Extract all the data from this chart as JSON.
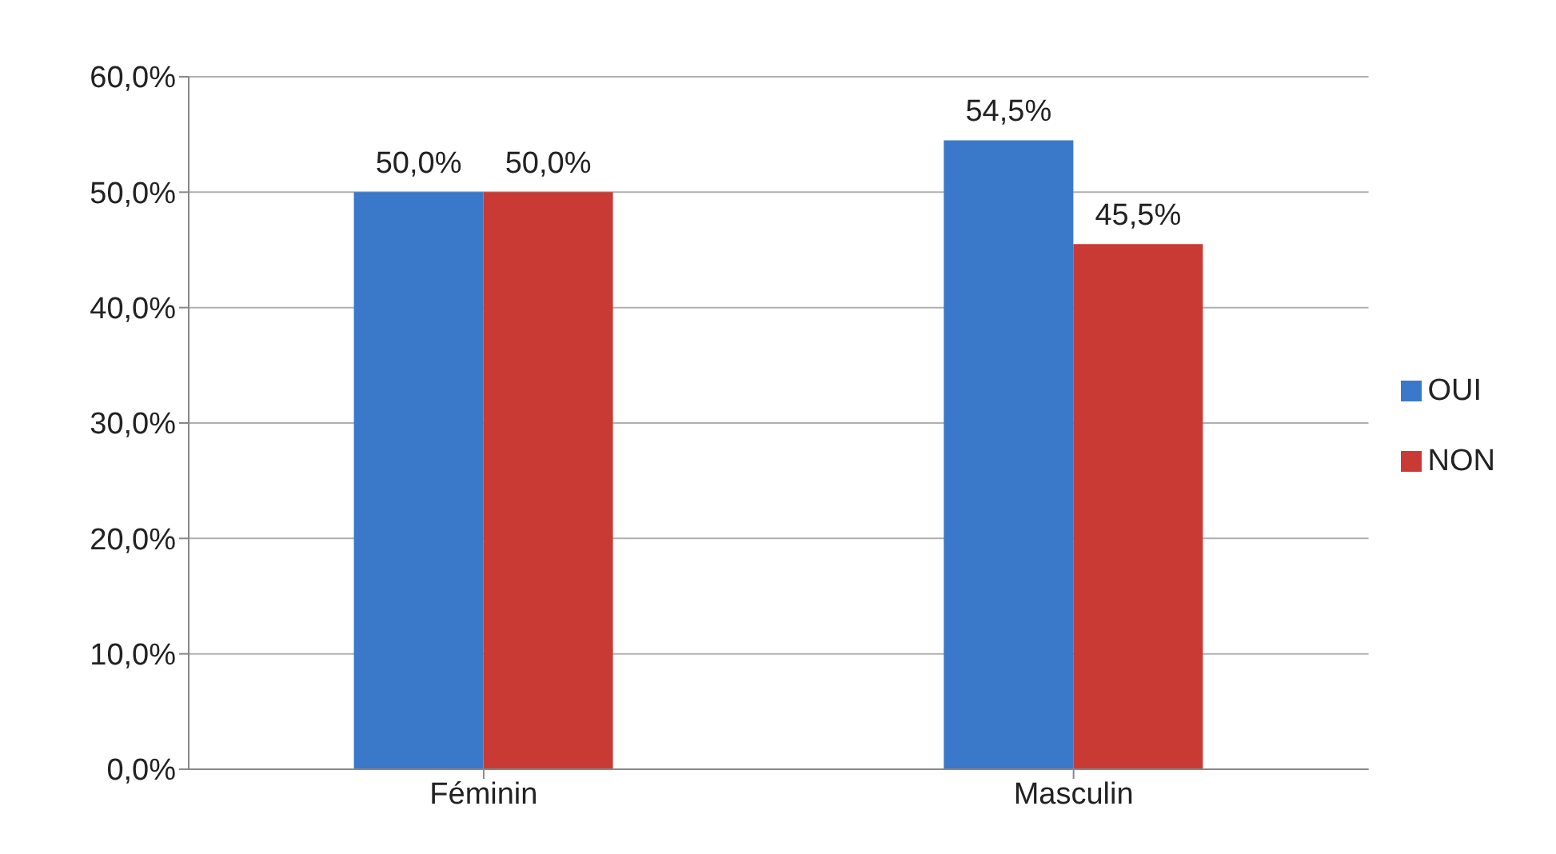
{
  "chart_data": {
    "type": "bar",
    "categories": [
      "Féminin",
      "Masculin"
    ],
    "series": [
      {
        "name": "OUI",
        "color": "#3a78c9",
        "values": [
          50.0,
          54.5
        ],
        "value_labels": [
          "50,0%",
          "54,5%"
        ]
      },
      {
        "name": "NON",
        "color": "#c93a35",
        "values": [
          50.0,
          45.5
        ],
        "value_labels": [
          "50,0%",
          "45,5%"
        ]
      }
    ],
    "ylim": [
      0,
      60
    ],
    "yticks": [
      {
        "value": 0,
        "label": "0,0%"
      },
      {
        "value": 10,
        "label": "10,0%"
      },
      {
        "value": 20,
        "label": "20,0%"
      },
      {
        "value": 30,
        "label": "30,0%"
      },
      {
        "value": 40,
        "label": "40,0%"
      },
      {
        "value": 50,
        "label": "50,0%"
      },
      {
        "value": 60,
        "label": "60,0%"
      }
    ],
    "grid": "y",
    "legend": "right"
  }
}
